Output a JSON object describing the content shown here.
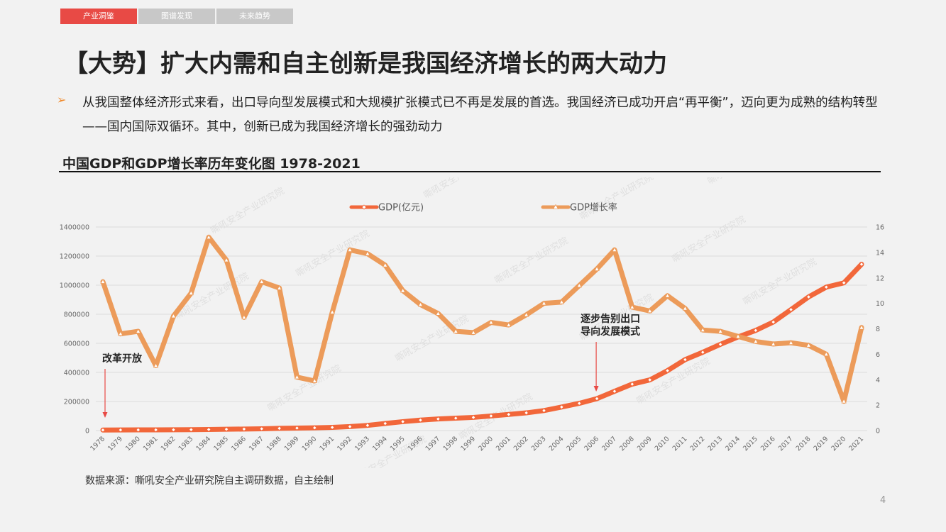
{
  "tabs": [
    {
      "label": "产业洞鉴",
      "active": true
    },
    {
      "label": "图谱发现",
      "active": false
    },
    {
      "label": "未来趋势",
      "active": false
    }
  ],
  "title": "【大势】扩大内需和自主创新是我国经济增长的两大动力",
  "bullet_icon": "arrow-bullet-icon",
  "description": "从我国整体经济形式来看，出口导向型发展模式和大规模扩张模式已不再是发展的首选。我国经济已成功开启“再平衡”，迈向更为成熟的结构转型——国内国际双循环。其中，创新已成为我国经济增长的强劲动力",
  "chart_title": "中国GDP和GDP增长率历年变化图 1978-2021",
  "source": "数据来源：嘶吼安全产业研究院自主调研数据，自主绘制",
  "page_number": "4",
  "chart_data": {
    "type": "line",
    "legend_placement": "top",
    "grid": true,
    "categories": [
      "1978",
      "1979",
      "1980",
      "1981",
      "1982",
      "1983",
      "1984",
      "1985",
      "1986",
      "1987",
      "1988",
      "1989",
      "1990",
      "1991",
      "1992",
      "1993",
      "1994",
      "1995",
      "1996",
      "1997",
      "1998",
      "1999",
      "2000",
      "2001",
      "2002",
      "2003",
      "2004",
      "2005",
      "2006",
      "2007",
      "2008",
      "2009",
      "2010",
      "2011",
      "2012",
      "2013",
      "2014",
      "2015",
      "2016",
      "2017",
      "2018",
      "2019",
      "2020",
      "2021"
    ],
    "y_left": {
      "min": 0,
      "max": 1400000,
      "ticks": [
        "0",
        "200000",
        "400000",
        "600000",
        "800000",
        "1000000",
        "1200000",
        "1400000"
      ]
    },
    "y_right": {
      "min": 0,
      "max": 16,
      "ticks": [
        "0",
        "2",
        "4",
        "6",
        "8",
        "10",
        "12",
        "14",
        "16"
      ]
    },
    "series": [
      {
        "name": "GDP(亿元)",
        "axis": "left",
        "color": "#f2673a",
        "marker": "diamond",
        "values": [
          3679,
          4101,
          4588,
          4936,
          5373,
          6021,
          7279,
          9099,
          10376,
          12175,
          15180,
          17180,
          18873,
          22006,
          27195,
          35673,
          48638,
          61340,
          71814,
          79715,
          85196,
          90564,
          100280,
          110863,
          121717,
          137422,
          161840,
          187319,
          219439,
          270092,
          319245,
          348518,
          412119,
          487940,
          538580,
          592963,
          643563,
          688858,
          746395,
          832036,
          919281,
          986515,
          1015986,
          1143670
        ]
      },
      {
        "name": "GDP增长率",
        "axis": "right",
        "color": "#ec9b5a",
        "marker": "triangle",
        "values": [
          11.7,
          7.6,
          7.8,
          5.1,
          9.0,
          10.8,
          15.2,
          13.4,
          8.9,
          11.7,
          11.2,
          4.2,
          3.9,
          9.3,
          14.2,
          13.9,
          13.0,
          11.0,
          9.9,
          9.2,
          7.8,
          7.7,
          8.5,
          8.3,
          9.1,
          10.0,
          10.1,
          11.4,
          12.7,
          14.2,
          9.7,
          9.4,
          10.6,
          9.6,
          7.9,
          7.8,
          7.4,
          7.0,
          6.8,
          6.9,
          6.7,
          6.0,
          2.3,
          8.1
        ]
      }
    ],
    "annotations": [
      {
        "text": "改革开放",
        "category": "1978"
      },
      {
        "text": "逐步告别出口",
        "text2": "导向发展模式",
        "category": "2006"
      }
    ],
    "watermark": "嘶吼安全产业研究院"
  }
}
